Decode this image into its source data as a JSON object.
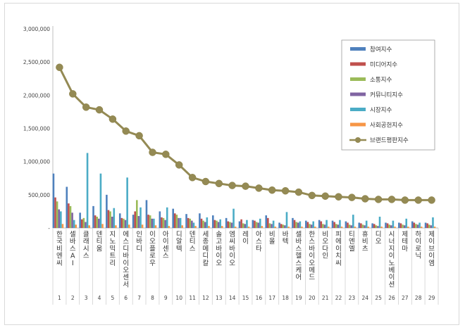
{
  "chart_data": {
    "type": "bar",
    "title": "",
    "xlabel": "",
    "ylabel": "",
    "ylim": [
      0,
      3000000
    ],
    "yticks": [
      "3,000,000",
      "2,500,000",
      "2,000,000",
      "1,500,000",
      "1,000,000",
      "500,000",
      "-"
    ],
    "grid": false,
    "legend_position": "top-right",
    "categories": [
      "한국비엔씨",
      "셀바스AI",
      "클래시스",
      "덴티움",
      "지노믹트리",
      "에스디바이오센서",
      "인바디",
      "이오플로우",
      "아이센스",
      "디알텍",
      "덴티스",
      "세종메디칼",
      "솔고바이오",
      "엠씨바이오",
      "레이",
      "아스타",
      "비올",
      "바텍",
      "셀바스헬스케어",
      "한스바이오메드",
      "비오다인",
      "피에이치씨",
      "티엔엘",
      "휴비츠",
      "디오",
      "시너지이노베이션",
      "제테마",
      "하이로닉",
      "제이브이엠"
    ],
    "ranks": [
      "1",
      "2",
      "3",
      "4",
      "5",
      "6",
      "7",
      "8",
      "9",
      "10",
      "11",
      "12",
      "13",
      "14",
      "15",
      "16",
      "17",
      "18",
      "19",
      "20",
      "21",
      "22",
      "23",
      "24",
      "25",
      "26",
      "27",
      "28",
      "29"
    ],
    "series": [
      {
        "name": "참여지수",
        "color": "#4f81bd",
        "values": [
          820000,
          620000,
          230000,
          330000,
          500000,
          220000,
          200000,
          420000,
          250000,
          290000,
          210000,
          220000,
          190000,
          150000,
          100000,
          120000,
          190000,
          80000,
          150000,
          110000,
          120000,
          110000,
          100000,
          80000,
          70000,
          80000,
          80000,
          100000,
          80000
        ]
      },
      {
        "name": "미디어지수",
        "color": "#c0504d",
        "values": [
          460000,
          370000,
          130000,
          190000,
          270000,
          150000,
          250000,
          200000,
          160000,
          220000,
          150000,
          140000,
          120000,
          100000,
          130000,
          110000,
          150000,
          60000,
          120000,
          90000,
          100000,
          90000,
          80000,
          70000,
          60000,
          70000,
          70000,
          80000,
          70000
        ]
      },
      {
        "name": "소통지수",
        "color": "#9bbb59",
        "values": [
          400000,
          330000,
          150000,
          170000,
          250000,
          140000,
          420000,
          190000,
          150000,
          200000,
          140000,
          110000,
          110000,
          90000,
          70000,
          90000,
          70000,
          50000,
          90000,
          60000,
          60000,
          60000,
          50000,
          50000,
          40000,
          50000,
          50000,
          60000,
          50000
        ]
      },
      {
        "name": "커뮤니티지수",
        "color": "#8064a2",
        "values": [
          280000,
          230000,
          90000,
          140000,
          170000,
          120000,
          180000,
          140000,
          120000,
          150000,
          110000,
          90000,
          90000,
          80000,
          60000,
          80000,
          60000,
          40000,
          80000,
          50000,
          50000,
          50000,
          40000,
          40000,
          30000,
          40000,
          40000,
          50000,
          40000
        ]
      },
      {
        "name": "시장지수",
        "color": "#4bacc6",
        "values": [
          250000,
          120000,
          1130000,
          820000,
          300000,
          760000,
          310000,
          140000,
          310000,
          150000,
          80000,
          160000,
          130000,
          290000,
          120000,
          140000,
          110000,
          240000,
          100000,
          100000,
          120000,
          120000,
          200000,
          110000,
          170000,
          110000,
          140000,
          80000,
          160000
        ]
      },
      {
        "name": "사회공헌지수",
        "color": "#f79646",
        "values": [
          60000,
          50000,
          40000,
          60000,
          40000,
          50000,
          50000,
          40000,
          30000,
          40000,
          30000,
          30000,
          30000,
          20000,
          20000,
          30000,
          20000,
          20000,
          20000,
          20000,
          20000,
          20000,
          20000,
          20000,
          20000,
          20000,
          20000,
          20000,
          20000
        ]
      }
    ],
    "line_series": {
      "name": "브랜드평판지수",
      "color": "#948a54",
      "values": [
        2420000,
        2020000,
        1820000,
        1780000,
        1640000,
        1460000,
        1390000,
        1140000,
        1110000,
        950000,
        760000,
        700000,
        670000,
        640000,
        630000,
        600000,
        570000,
        560000,
        540000,
        490000,
        480000,
        470000,
        460000,
        440000,
        430000,
        430000,
        420000,
        420000,
        420000
      ]
    }
  }
}
